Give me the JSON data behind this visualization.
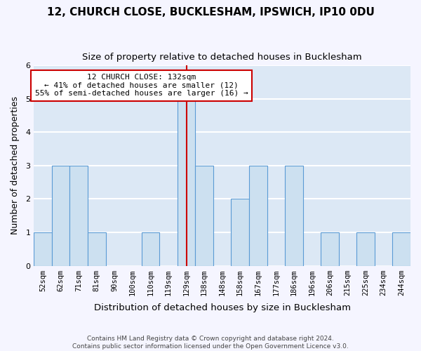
{
  "title1": "12, CHURCH CLOSE, BUCKLESHAM, IPSWICH, IP10 0DU",
  "title2": "Size of property relative to detached houses in Bucklesham",
  "xlabel": "Distribution of detached houses by size in Bucklesham",
  "ylabel": "Number of detached properties",
  "footnote1": "Contains HM Land Registry data © Crown copyright and database right 2024.",
  "footnote2": "Contains public sector information licensed under the Open Government Licence v3.0.",
  "bins": [
    "52sqm",
    "62sqm",
    "71sqm",
    "81sqm",
    "90sqm",
    "100sqm",
    "110sqm",
    "119sqm",
    "129sqm",
    "138sqm",
    "148sqm",
    "158sqm",
    "167sqm",
    "177sqm",
    "186sqm",
    "196sqm",
    "206sqm",
    "215sqm",
    "225sqm",
    "234sqm",
    "244sqm"
  ],
  "values": [
    1,
    3,
    3,
    1,
    0,
    0,
    1,
    0,
    5,
    3,
    0,
    2,
    3,
    0,
    3,
    0,
    1,
    0,
    1,
    0,
    1
  ],
  "bar_color": "#cce0f0",
  "bar_edge_color": "#5b9bd5",
  "red_line_color": "#cc0000",
  "red_line_bin": 8,
  "highlight_label": "12 CHURCH CLOSE: 132sqm",
  "smaller_pct": "41% of detached houses are smaller (12)",
  "larger_pct": "55% of semi-detached houses are larger (16)",
  "annotation_box_facecolor": "#ffffff",
  "annotation_box_edgecolor": "#cc0000",
  "ylim": [
    0,
    6
  ],
  "yticks": [
    0,
    1,
    2,
    3,
    4,
    5,
    6
  ],
  "background_color": "#dce8f5",
  "grid_color": "#ffffff",
  "fig_facecolor": "#f5f5ff",
  "title_fontsize": 11,
  "subtitle_fontsize": 9.5,
  "ylabel_fontsize": 9,
  "xlabel_fontsize": 9.5,
  "tick_fontsize": 7.5,
  "annotation_fontsize": 8,
  "footnote_fontsize": 6.5
}
